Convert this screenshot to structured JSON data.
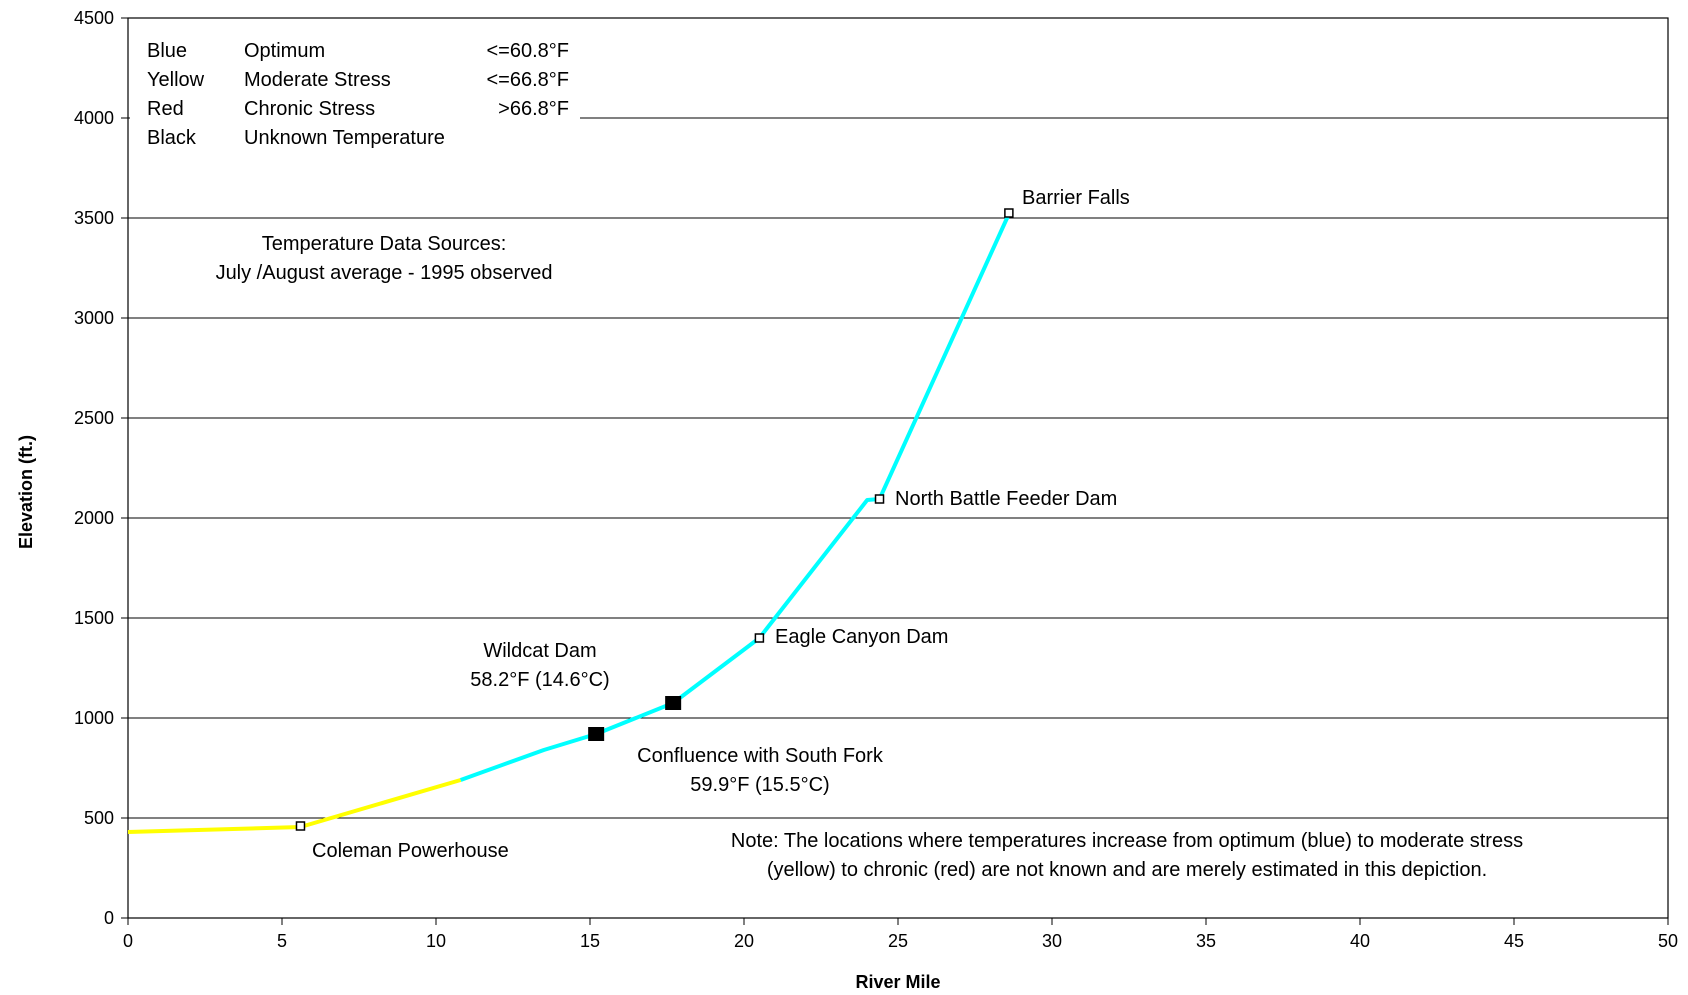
{
  "chart_data": {
    "type": "line",
    "xlabel": "River Mile",
    "ylabel": "Elevation (ft.)",
    "xlim": [
      0,
      50
    ],
    "ylim": [
      0,
      4500
    ],
    "xticks": [
      0,
      5,
      10,
      15,
      20,
      25,
      30,
      35,
      40,
      45,
      50
    ],
    "yticks": [
      0,
      500,
      1000,
      1500,
      2000,
      2500,
      3000,
      3500,
      4000,
      4500
    ],
    "grid": "horizontal",
    "colors": {
      "yellow": "#ffff00",
      "cyan": "#00ffff",
      "black": "#000000"
    },
    "segments": [
      {
        "color": "yellow",
        "points": [
          [
            0,
            430
          ],
          [
            5.6,
            455
          ],
          [
            10.8,
            690
          ]
        ]
      },
      {
        "color": "cyan",
        "points": [
          [
            10.8,
            690
          ],
          [
            13.5,
            840
          ],
          [
            15.2,
            920
          ],
          [
            17.7,
            1075
          ],
          [
            20.5,
            1400
          ],
          [
            24.0,
            2090
          ],
          [
            24.4,
            2095
          ],
          [
            28.6,
            3520
          ]
        ]
      }
    ],
    "markers": [
      {
        "name": "coleman-powerhouse",
        "x": 5.6,
        "y": 460,
        "style": "open-small"
      },
      {
        "name": "confluence-south-fork",
        "x": 15.2,
        "y": 920,
        "style": "filled-large"
      },
      {
        "name": "wildcat-dam",
        "x": 17.7,
        "y": 1075,
        "style": "filled-large"
      },
      {
        "name": "eagle-canyon-dam",
        "x": 20.5,
        "y": 1400,
        "style": "open-small"
      },
      {
        "name": "north-battle-feeder-dam",
        "x": 24.4,
        "y": 2095,
        "style": "open-small"
      },
      {
        "name": "barrier-falls",
        "x": 28.6,
        "y": 3525,
        "style": "open-small"
      }
    ],
    "annotations": {
      "barrier_falls": "Barrier Falls",
      "north_battle": "North Battle Feeder Dam",
      "eagle_canyon": "Eagle Canyon Dam",
      "wildcat_line1": "Wildcat Dam",
      "wildcat_line2": "58.2°F (14.6°C)",
      "confluence_line1": "Confluence with South Fork",
      "confluence_line2": "59.9°F (15.5°C)",
      "coleman": "Coleman Powerhouse",
      "sources_line1": "Temperature Data Sources:",
      "sources_line2": "July /August average - 1995 observed",
      "note_line1": "Note:  The locations where temperatures increase from optimum (blue) to moderate stress",
      "note_line2": "(yellow) to chronic (red) are not known and are merely estimated in this depiction."
    },
    "legend": [
      {
        "color": "Blue",
        "label": "Optimum",
        "threshold": "<=60.8°F"
      },
      {
        "color": "Yellow",
        "label": "Moderate Stress",
        "threshold": "<=66.8°F"
      },
      {
        "color": "Red",
        "label": "Chronic Stress",
        "threshold": ">66.8°F"
      },
      {
        "color": "Black",
        "label": "Unknown Temperature",
        "threshold": ""
      }
    ]
  }
}
